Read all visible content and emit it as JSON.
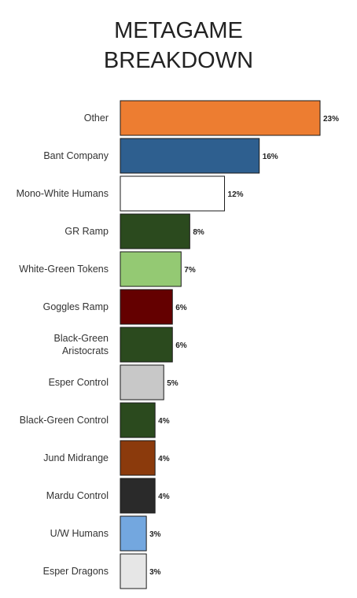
{
  "chart_data": {
    "type": "bar",
    "orientation": "horizontal",
    "title": [
      "METAGAME",
      "BREAKDOWN"
    ],
    "categories": [
      [
        "Other"
      ],
      [
        "Bant Company"
      ],
      [
        "Mono-White Humans"
      ],
      [
        "GR Ramp"
      ],
      [
        "White-Green Tokens"
      ],
      [
        "Goggles Ramp"
      ],
      [
        "Black-Green",
        "Aristocrats"
      ],
      [
        "Esper Control"
      ],
      [
        "Black-Green Control"
      ],
      [
        "Jund Midrange"
      ],
      [
        "Mardu Control"
      ],
      [
        "U/W Humans"
      ],
      [
        "Esper Dragons"
      ]
    ],
    "values": [
      23,
      16,
      12,
      8,
      7,
      6,
      6,
      5,
      4,
      4,
      4,
      3,
      3
    ],
    "value_labels": [
      "23%",
      "16%",
      "12%",
      "8%",
      "7%",
      "6%",
      "6%",
      "5%",
      "4%",
      "4%",
      "4%",
      "3%",
      "3%"
    ],
    "colors": [
      "#ed7d31",
      "#2e5f8f",
      "#ffffff",
      "#2b4a1e",
      "#94c973",
      "#640000",
      "#2b4a1e",
      "#c8c8c8",
      "#2b4a1e",
      "#8b3a0c",
      "#2a2a2a",
      "#73a7df",
      "#e6e6e6"
    ],
    "xlim": [
      0,
      23
    ],
    "grid": false,
    "legend": "none"
  }
}
